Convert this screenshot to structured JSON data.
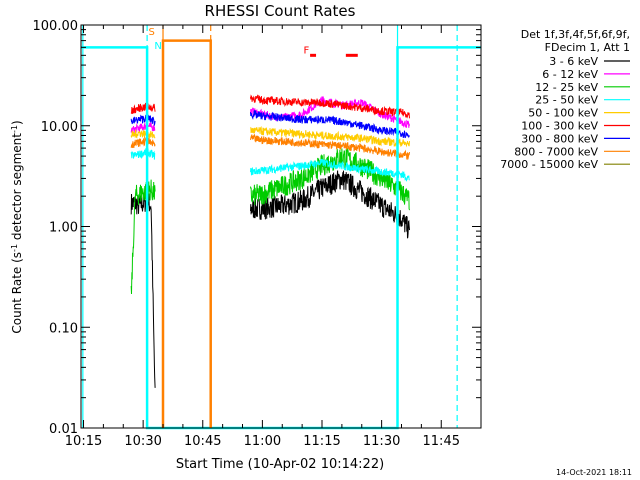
{
  "chart_data": {
    "type": "line",
    "title": "RHESSI Count Rates",
    "xlabel": "Start Time (10-Apr-02 10:14:22)",
    "ylabel_parts": [
      "Count Rate (s",
      "-1",
      " detector segment",
      "-1",
      ")"
    ],
    "y_scale": "log",
    "ylim": [
      0.01,
      100
    ],
    "xlim": [
      "10:14:22",
      "11:55:00"
    ],
    "x_ticks": [
      "10:15",
      "10:30",
      "10:45",
      "11:00",
      "11:15",
      "11:30",
      "11:45"
    ],
    "y_ticks": [
      "0.01",
      "0.10",
      "1.00",
      "10.00",
      "100.00"
    ],
    "legend_header": [
      "Det 1f,3f,4f,5f,6f,9f,",
      "FDecim 1, Att 1"
    ],
    "series": [
      {
        "name": "3 - 6 keV",
        "color": "#000000",
        "segments": [
          {
            "t": [
              "10:27",
              "10:28",
              "10:29",
              "10:30",
              "10:31",
              "10:32",
              "10:33"
            ],
            "v": [
              1.7,
              1.7,
              1.6,
              1.7,
              1.8,
              1.6,
              0.02
            ]
          },
          {
            "t": [
              "10:57",
              "11:00",
              "11:05",
              "11:10",
              "11:15",
              "11:20",
              "11:25",
              "11:30",
              "11:35",
              "11:37"
            ],
            "v": [
              1.5,
              1.5,
              1.6,
              1.8,
              2.4,
              3.0,
              2.2,
              1.6,
              1.2,
              0.9
            ]
          }
        ]
      },
      {
        "name": "6 - 12 keV",
        "color": "#ff00ff",
        "segments": [
          {
            "t": [
              "10:27",
              "10:29",
              "10:31",
              "10:33"
            ],
            "v": [
              9,
              9.5,
              10,
              9.5
            ]
          },
          {
            "t": [
              "10:57",
              "11:00",
              "11:05",
              "11:10",
              "11:15",
              "11:20",
              "11:25",
              "11:30",
              "11:35",
              "11:37"
            ],
            "v": [
              14,
              13,
              12,
              13,
              18,
              16,
              17,
              13,
              11,
              10
            ]
          }
        ]
      },
      {
        "name": "12 - 25 keV",
        "color": "#00cc00",
        "segments": [
          {
            "t": [
              "10:27",
              "10:28",
              "10:30",
              "10:32",
              "10:33"
            ],
            "v": [
              0.2,
              2.0,
              2.2,
              2.3,
              2.1
            ]
          },
          {
            "t": [
              "10:57",
              "11:00",
              "11:05",
              "11:10",
              "11:15",
              "11:20",
              "11:25",
              "11:30",
              "11:35",
              "11:37"
            ],
            "v": [
              2.0,
              2.1,
              2.5,
              3.0,
              4.0,
              5.0,
              4.0,
              3.0,
              2.2,
              1.8
            ]
          }
        ]
      },
      {
        "name": "25 - 50 keV",
        "color": "#00ffff",
        "segments": [
          {
            "t": [
              "10:27",
              "10:29",
              "10:31",
              "10:33"
            ],
            "v": [
              5,
              5.2,
              5.5,
              5
            ]
          },
          {
            "t": [
              "10:57",
              "11:00",
              "11:05",
              "11:10",
              "11:15",
              "11:20",
              "11:25",
              "11:30",
              "11:35",
              "11:37"
            ],
            "v": [
              3.5,
              3.6,
              3.8,
              4.0,
              4.3,
              4.0,
              3.7,
              3.5,
              3.3,
              3.0
            ]
          }
        ]
      },
      {
        "name": "50 - 100 keV",
        "color": "#ffcc00",
        "segments": [
          {
            "t": [
              "10:27",
              "10:29",
              "10:31",
              "10:33"
            ],
            "v": [
              8,
              8.5,
              8.2,
              8
            ]
          },
          {
            "t": [
              "10:57",
              "11:00",
              "11:05",
              "11:10",
              "11:15",
              "11:20",
              "11:25",
              "11:30",
              "11:35",
              "11:37"
            ],
            "v": [
              9,
              8.8,
              8.5,
              8.3,
              8.0,
              7.8,
              7.5,
              7.0,
              6.8,
              6.5
            ]
          }
        ]
      },
      {
        "name": "100 - 300 keV",
        "color": "#ff0000",
        "segments": [
          {
            "t": [
              "10:27",
              "10:29",
              "10:31",
              "10:33"
            ],
            "v": [
              14,
              15,
              15.5,
              15
            ]
          },
          {
            "t": [
              "10:57",
              "11:00",
              "11:05",
              "11:10",
              "11:15",
              "11:20",
              "11:25",
              "11:30",
              "11:35",
              "11:37"
            ],
            "v": [
              19,
              18,
              17.5,
              17,
              17,
              16,
              15,
              14,
              13.5,
              13
            ]
          }
        ]
      },
      {
        "name": "300 - 800 keV",
        "color": "#0000ff",
        "segments": [
          {
            "t": [
              "10:27",
              "10:29",
              "10:31",
              "10:33"
            ],
            "v": [
              11,
              11.5,
              12,
              11
            ]
          },
          {
            "t": [
              "10:57",
              "11:00",
              "11:05",
              "11:10",
              "11:15",
              "11:20",
              "11:25",
              "11:30",
              "11:35",
              "11:37"
            ],
            "v": [
              13,
              12.5,
              12,
              11.5,
              11.5,
              11,
              10,
              9,
              8.5,
              8
            ]
          }
        ]
      },
      {
        "name": "800 - 7000 keV",
        "color": "#ff8000",
        "segments": [
          {
            "t": [
              "10:27",
              "10:29",
              "10:31",
              "10:33"
            ],
            "v": [
              6.5,
              6.8,
              7,
              6.5
            ]
          },
          {
            "t": [
              "10:57",
              "11:00",
              "11:05",
              "11:10",
              "11:15",
              "11:20",
              "11:25",
              "11:30",
              "11:35",
              "11:37"
            ],
            "v": [
              7.5,
              7.2,
              7.0,
              6.8,
              6.5,
              6.3,
              6.0,
              5.5,
              5.2,
              5.0
            ]
          }
        ]
      },
      {
        "name": "7000 - 15000 keV",
        "color": "#808000",
        "segments": []
      }
    ],
    "overlay_lines": [
      {
        "color": "#00ffff",
        "style": "solid",
        "t": [
          "10:14:22",
          "10:31",
          "10:31",
          "11:34",
          "11:34",
          "11:55"
        ],
        "v": [
          60,
          60,
          0.01,
          0.01,
          60,
          60
        ]
      },
      {
        "color": "#ff8000",
        "style": "solid",
        "t": [
          "10:35",
          "10:35",
          "10:47",
          "10:47"
        ],
        "v": [
          0.01,
          70,
          70,
          0.01
        ]
      }
    ],
    "vlines": [
      {
        "t": "10:14:50",
        "color": "#00ffff",
        "style": "solid"
      },
      {
        "t": "10:31",
        "color": "#00ffff",
        "style": "dash"
      },
      {
        "t": "10:35",
        "color": "#ff8000",
        "style": "solid"
      },
      {
        "t": "10:47",
        "color": "#ff8000",
        "style": "dash"
      },
      {
        "t": "11:34",
        "color": "#00ffff",
        "style": "solid"
      },
      {
        "t": "11:49",
        "color": "#00ffff",
        "style": "dash"
      }
    ],
    "annotations": [
      {
        "text": "S",
        "color": "#ff8000",
        "t": "10:31:20",
        "v": 80
      },
      {
        "text": "N",
        "color": "#00ffff",
        "t": "10:32:50",
        "v": 58
      },
      {
        "text": "F",
        "color": "#ff0000",
        "t": "11:10:20",
        "v": 52
      }
    ],
    "flag_segments": [
      {
        "color": "#ff0000",
        "t": [
          "11:12:00",
          "11:13:30"
        ],
        "v": 50
      },
      {
        "color": "#ff0000",
        "t": [
          "11:21:00",
          "11:24:00"
        ],
        "v": 50
      }
    ],
    "footer": "14-Oct-2021 18:11"
  }
}
